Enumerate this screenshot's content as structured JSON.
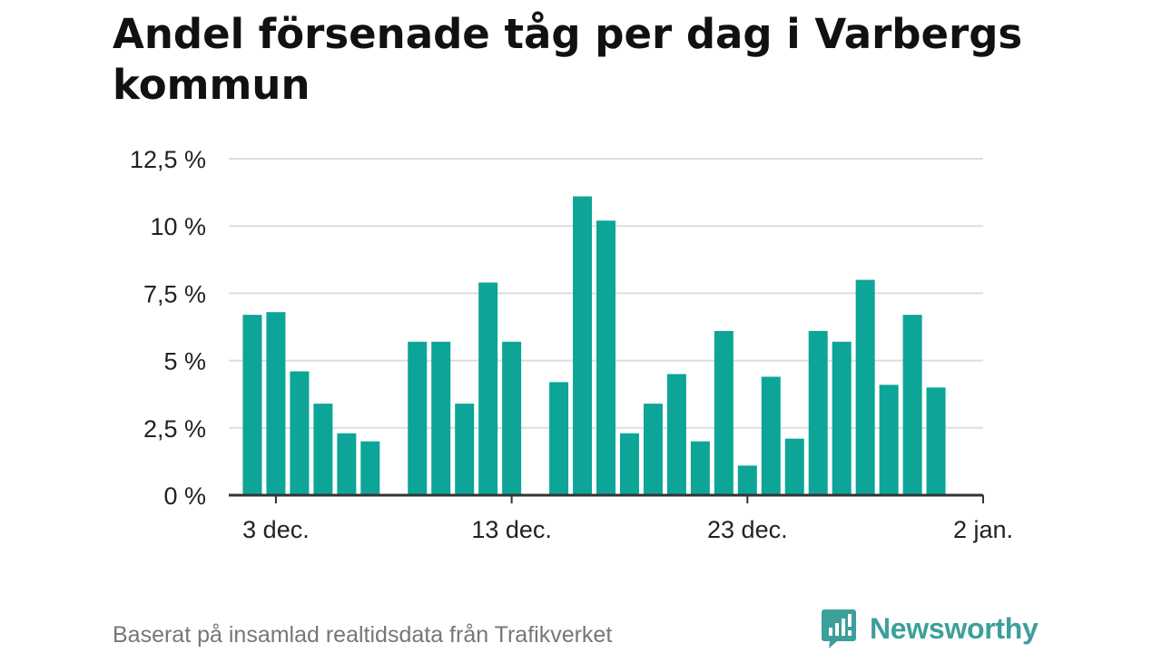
{
  "title": "Andel försenade tåg per dag i Varbergs kommun",
  "source": "Baserat på insamlad realtidsdata från Trafikverket",
  "brand": {
    "name": "Newsworthy",
    "color": "#3d9f9a",
    "icon": "newsworthy-logo-icon"
  },
  "colors": {
    "bar": "#0ca598",
    "grid": "#dddddd",
    "axis": "#333333"
  },
  "chart_data": {
    "type": "bar",
    "title": "Andel försenade tåg per dag i Varbergs kommun",
    "xlabel": "",
    "ylabel": "",
    "x_start": "2023-12-01",
    "x_end": "2024-01-02",
    "ylim": [
      0,
      12.5
    ],
    "y_ticks": [
      {
        "value": 0,
        "label": "0 %"
      },
      {
        "value": 2.5,
        "label": "2,5 %"
      },
      {
        "value": 5,
        "label": "5 %"
      },
      {
        "value": 7.5,
        "label": "7,5 %"
      },
      {
        "value": 10,
        "label": "10 %"
      },
      {
        "value": 12.5,
        "label": "12,5 %"
      }
    ],
    "x_ticks": [
      {
        "date": "2023-12-03",
        "label": "3 dec."
      },
      {
        "date": "2023-12-13",
        "label": "13 dec."
      },
      {
        "date": "2023-12-23",
        "label": "23 dec."
      },
      {
        "date": "2024-01-02",
        "label": "2 jan."
      }
    ],
    "grid": true,
    "legend": "none",
    "bars": [
      {
        "date": "2023-12-02",
        "value": 6.7
      },
      {
        "date": "2023-12-03",
        "value": 6.8
      },
      {
        "date": "2023-12-04",
        "value": 4.6
      },
      {
        "date": "2023-12-05",
        "value": 3.4
      },
      {
        "date": "2023-12-06",
        "value": 2.3
      },
      {
        "date": "2023-12-07",
        "value": 2.0
      },
      {
        "date": "2023-12-09",
        "value": 5.7
      },
      {
        "date": "2023-12-10",
        "value": 5.7
      },
      {
        "date": "2023-12-11",
        "value": 3.4
      },
      {
        "date": "2023-12-12",
        "value": 7.9
      },
      {
        "date": "2023-12-13",
        "value": 5.7
      },
      {
        "date": "2023-12-15",
        "value": 4.2
      },
      {
        "date": "2023-12-16",
        "value": 11.1
      },
      {
        "date": "2023-12-17",
        "value": 10.2
      },
      {
        "date": "2023-12-18",
        "value": 2.3
      },
      {
        "date": "2023-12-19",
        "value": 3.4
      },
      {
        "date": "2023-12-20",
        "value": 4.5
      },
      {
        "date": "2023-12-21",
        "value": 2.0
      },
      {
        "date": "2023-12-22",
        "value": 6.1
      },
      {
        "date": "2023-12-23",
        "value": 1.1
      },
      {
        "date": "2023-12-24",
        "value": 4.4
      },
      {
        "date": "2023-12-25",
        "value": 2.1
      },
      {
        "date": "2023-12-26",
        "value": 6.1
      },
      {
        "date": "2023-12-27",
        "value": 5.7
      },
      {
        "date": "2023-12-28",
        "value": 8.0
      },
      {
        "date": "2023-12-29",
        "value": 4.1
      },
      {
        "date": "2023-12-30",
        "value": 6.7
      },
      {
        "date": "2023-12-31",
        "value": 4.0
      }
    ]
  }
}
